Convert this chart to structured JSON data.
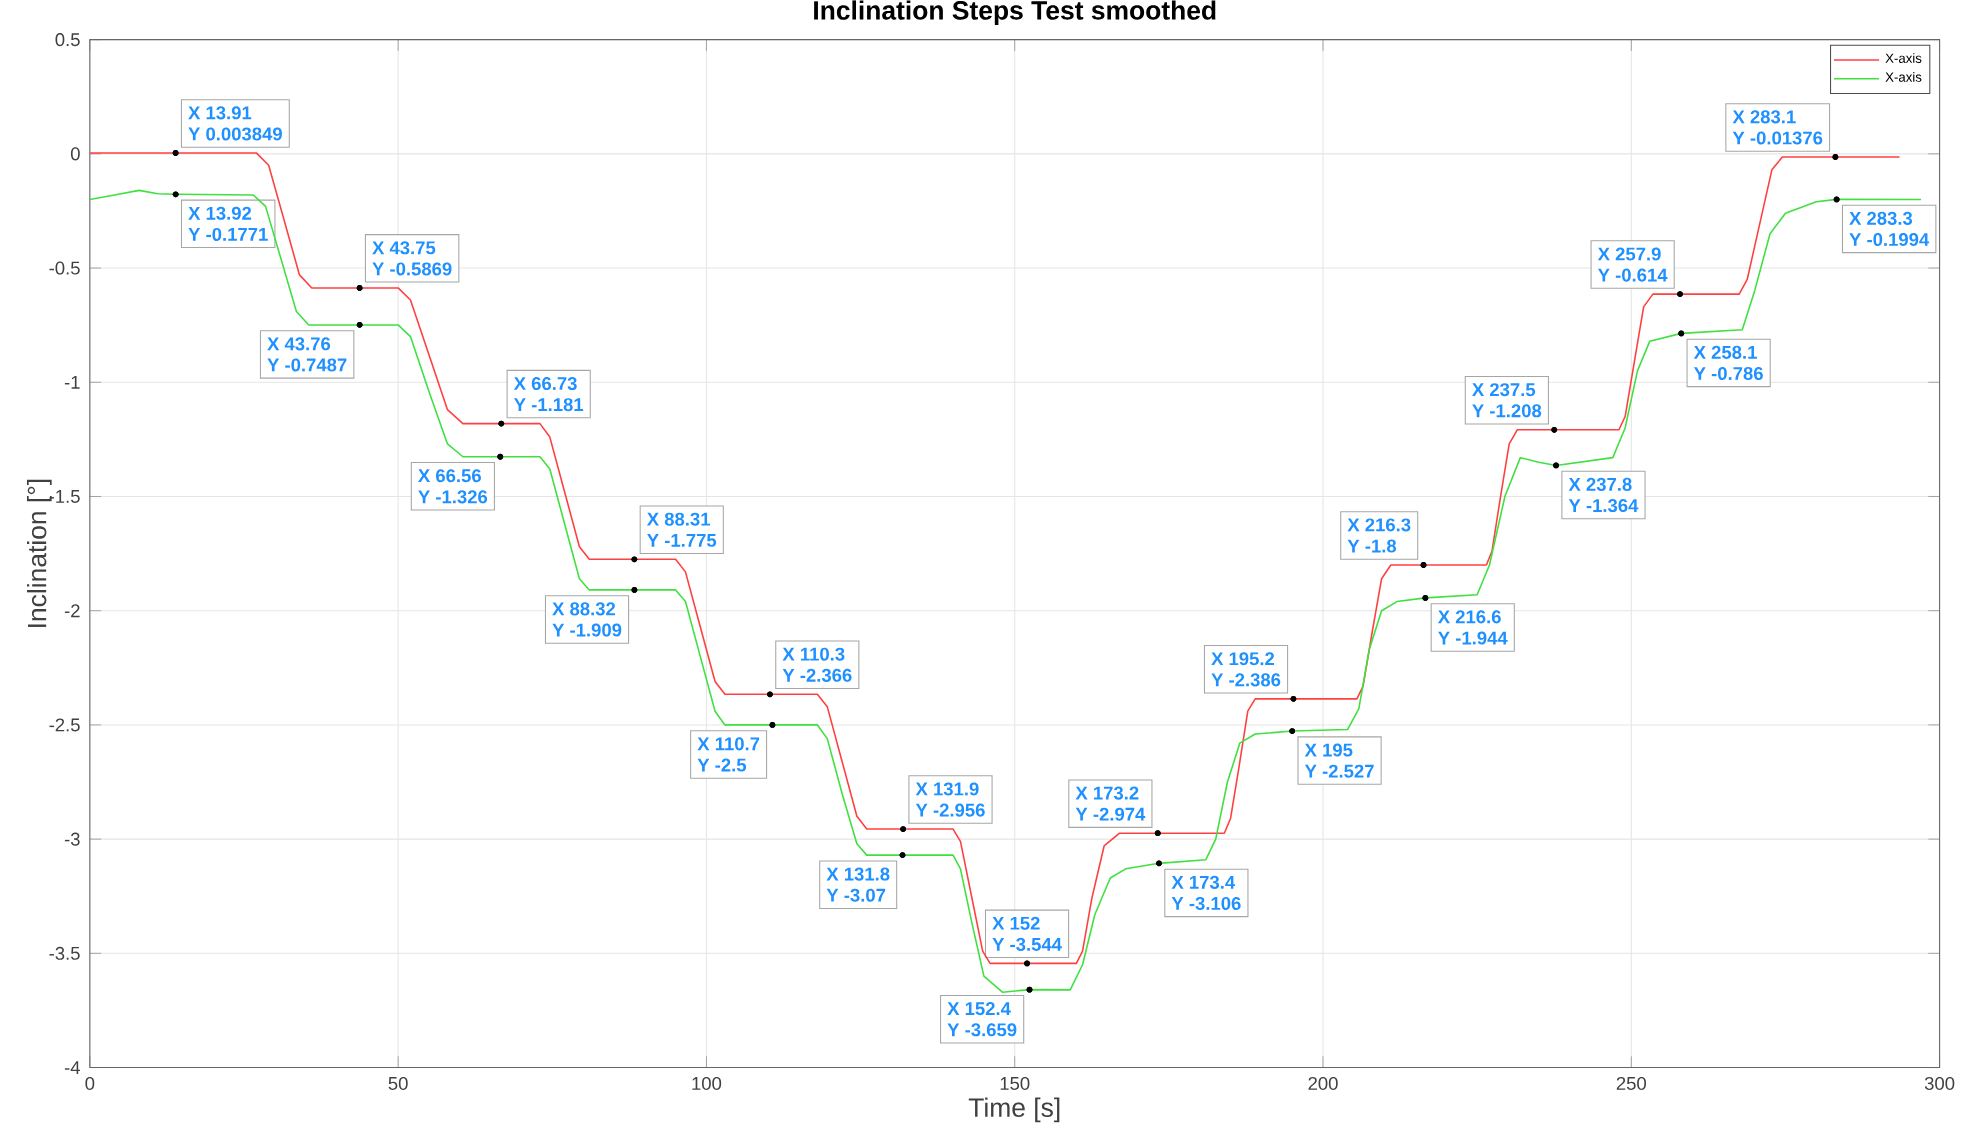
{
  "chart_data": {
    "type": "line",
    "title": "Inclination Steps Test smoothed",
    "xlabel": "Time [s]",
    "ylabel": "Inclination [°]",
    "xlim": [
      0,
      300
    ],
    "ylim": [
      -4,
      0.5
    ],
    "xticks": [
      0,
      50,
      100,
      150,
      200,
      250,
      300
    ],
    "yticks": [
      -4,
      -3.5,
      -3,
      -2.5,
      -2,
      -1.5,
      -1,
      -0.5,
      0,
      0.5
    ],
    "grid": true,
    "legend": "top right",
    "series": [
      {
        "name": "X-axis",
        "color": "#ff4040",
        "x": [
          0,
          27,
          29,
          31.5,
          34,
          36,
          50,
          52,
          55,
          58,
          60.5,
          73,
          74.6,
          77,
          79.4,
          81,
          95,
          96.6,
          99,
          101.4,
          103,
          118,
          119.6,
          122,
          124.4,
          126,
          140,
          141.2,
          143,
          144.8,
          146,
          160,
          161,
          162.5,
          164.5,
          167,
          184,
          185,
          186.4,
          187.8,
          189,
          205.5,
          206.5,
          208,
          209.5,
          211,
          226.5,
          227.4,
          228.8,
          230.2,
          231.5,
          248,
          249,
          250.5,
          252,
          253.5,
          267.5,
          268.8,
          270.8,
          272.8,
          274.5,
          293.5
        ],
        "values": [
          0.004,
          0.004,
          -0.05,
          -0.29,
          -0.53,
          -0.587,
          -0.587,
          -0.64,
          -0.88,
          -1.12,
          -1.181,
          -1.181,
          -1.24,
          -1.48,
          -1.72,
          -1.775,
          -1.775,
          -1.83,
          -2.07,
          -2.31,
          -2.366,
          -2.366,
          -2.42,
          -2.66,
          -2.9,
          -2.956,
          -2.956,
          -3.01,
          -3.25,
          -3.49,
          -3.544,
          -3.544,
          -3.49,
          -3.26,
          -3.03,
          -2.974,
          -2.974,
          -2.91,
          -2.68,
          -2.44,
          -2.386,
          -2.386,
          -2.33,
          -2.09,
          -1.86,
          -1.8,
          -1.8,
          -1.74,
          -1.5,
          -1.27,
          -1.208,
          -1.208,
          -1.15,
          -0.91,
          -0.67,
          -0.614,
          -0.614,
          -0.55,
          -0.31,
          -0.07,
          -0.014,
          -0.014
        ]
      },
      {
        "name": "X-axis",
        "color": "#40e040",
        "x": [
          0,
          4,
          8,
          11,
          14,
          26.5,
          28.5,
          31,
          33.5,
          35.5,
          50,
          52,
          55,
          58,
          60.5,
          73,
          74.6,
          77,
          79.4,
          81,
          95,
          96.6,
          99,
          101.4,
          103,
          118,
          119.6,
          122,
          124.4,
          126,
          140,
          141.2,
          143,
          145,
          148,
          152.4,
          159,
          161,
          163,
          165.5,
          168,
          173.4,
          181,
          182.6,
          184.5,
          186.5,
          189,
          195,
          204,
          205.8,
          207.5,
          209.5,
          212,
          216.6,
          225,
          227,
          229.5,
          232,
          235,
          237.8,
          247,
          249,
          251,
          253,
          258.1,
          268,
          270,
          272.5,
          275,
          280,
          283.3,
          297
        ],
        "values": [
          -0.2,
          -0.18,
          -0.16,
          -0.175,
          -0.177,
          -0.18,
          -0.23,
          -0.46,
          -0.69,
          -0.749,
          -0.749,
          -0.8,
          -1.04,
          -1.27,
          -1.326,
          -1.326,
          -1.38,
          -1.62,
          -1.86,
          -1.909,
          -1.909,
          -1.96,
          -2.2,
          -2.44,
          -2.5,
          -2.5,
          -2.56,
          -2.8,
          -3.02,
          -3.07,
          -3.07,
          -3.13,
          -3.36,
          -3.6,
          -3.67,
          -3.659,
          -3.66,
          -3.55,
          -3.33,
          -3.17,
          -3.13,
          -3.106,
          -3.09,
          -3.0,
          -2.75,
          -2.58,
          -2.54,
          -2.527,
          -2.52,
          -2.43,
          -2.17,
          -2.0,
          -1.96,
          -1.944,
          -1.93,
          -1.8,
          -1.5,
          -1.33,
          -1.35,
          -1.364,
          -1.33,
          -1.2,
          -0.95,
          -0.82,
          -0.786,
          -0.77,
          -0.6,
          -0.35,
          -0.26,
          -0.21,
          -0.1994,
          -0.2
        ]
      }
    ],
    "annotations": [
      {
        "text": "X 13.91",
        "x": 13.91,
        "y": 0.003849
      },
      {
        "text": "Y 0.003849",
        "x": 13.91,
        "y": 0.003849
      },
      {
        "text": "X 13.92",
        "x": 13.92,
        "y": -0.1771
      },
      {
        "text": "Y -0.1771",
        "x": 13.92,
        "y": -0.1771
      },
      {
        "text": "X 43.75",
        "x": 43.75,
        "y": -0.5869
      },
      {
        "text": "Y -0.5869",
        "x": 43.75,
        "y": -0.5869
      },
      {
        "text": "X 43.76",
        "x": 43.76,
        "y": -0.7487
      },
      {
        "text": "Y -0.7487",
        "x": 43.76,
        "y": -0.7487
      },
      {
        "text": "X 66.73",
        "x": 66.73,
        "y": -1.181
      },
      {
        "text": "Y -1.181",
        "x": 66.73,
        "y": -1.181
      },
      {
        "text": "X 66.56",
        "x": 66.56,
        "y": -1.326
      },
      {
        "text": "Y -1.326",
        "x": 66.56,
        "y": -1.326
      },
      {
        "text": "X 88.31",
        "x": 88.31,
        "y": -1.775
      },
      {
        "text": "Y -1.775",
        "x": 88.31,
        "y": -1.775
      },
      {
        "text": "X 88.32",
        "x": 88.32,
        "y": -1.909
      },
      {
        "text": "Y -1.909",
        "x": 88.32,
        "y": -1.909
      },
      {
        "text": "X 110.3",
        "x": 110.3,
        "y": -2.366
      },
      {
        "text": "Y -2.366",
        "x": 110.3,
        "y": -2.366
      },
      {
        "text": "X 110.7",
        "x": 110.7,
        "y": -2.5
      },
      {
        "text": "Y -2.5",
        "x": 110.7,
        "y": -2.5
      },
      {
        "text": "X 131.9",
        "x": 131.9,
        "y": -2.956
      },
      {
        "text": "Y -2.956",
        "x": 131.9,
        "y": -2.956
      },
      {
        "text": "X 131.8",
        "x": 131.8,
        "y": -3.07
      },
      {
        "text": "Y -3.07",
        "x": 131.8,
        "y": -3.07
      },
      {
        "text": "X 152",
        "x": 152,
        "y": -3.544
      },
      {
        "text": "Y -3.544",
        "x": 152,
        "y": -3.544
      },
      {
        "text": "X 152.4",
        "x": 152.4,
        "y": -3.659
      },
      {
        "text": "Y -3.659",
        "x": 152.4,
        "y": -3.659
      },
      {
        "text": "X 173.2",
        "x": 173.2,
        "y": -2.974
      },
      {
        "text": "Y -2.974",
        "x": 173.2,
        "y": -2.974
      },
      {
        "text": "X 173.4",
        "x": 173.4,
        "y": -3.106
      },
      {
        "text": "Y -3.106",
        "x": 173.4,
        "y": -3.106
      },
      {
        "text": "X 195.2",
        "x": 195.2,
        "y": -2.386
      },
      {
        "text": "Y -2.386",
        "x": 195.2,
        "y": -2.386
      },
      {
        "text": "X 195",
        "x": 195,
        "y": -2.527
      },
      {
        "text": "Y -2.527",
        "x": 195,
        "y": -2.527
      },
      {
        "text": "X 216.3",
        "x": 216.3,
        "y": -1.8
      },
      {
        "text": "Y -1.8",
        "x": 216.3,
        "y": -1.8
      },
      {
        "text": "X 216.6",
        "x": 216.6,
        "y": -1.944
      },
      {
        "text": "Y -1.944",
        "x": 216.6,
        "y": -1.944
      },
      {
        "text": "X 237.5",
        "x": 237.5,
        "y": -1.208
      },
      {
        "text": "Y -1.208",
        "x": 237.5,
        "y": -1.208
      },
      {
        "text": "X 237.8",
        "x": 237.8,
        "y": -1.364
      },
      {
        "text": "Y -1.364",
        "x": 237.8,
        "y": -1.364
      },
      {
        "text": "X 257.9",
        "x": 257.9,
        "y": -0.614
      },
      {
        "text": "Y -0.614",
        "x": 257.9,
        "y": -0.614
      },
      {
        "text": "X 258.1",
        "x": 258.1,
        "y": -0.786
      },
      {
        "text": "Y -0.786",
        "x": 258.1,
        "y": -0.786
      },
      {
        "text": "X 283.1",
        "x": 283.1,
        "y": -0.01376
      },
      {
        "text": "Y -0.01376",
        "x": 283.1,
        "y": -0.01376
      },
      {
        "text": "X 283.3",
        "x": 283.3,
        "y": -0.1994
      },
      {
        "text": "Y -0.1994",
        "x": 283.3,
        "y": -0.1994
      }
    ]
  }
}
